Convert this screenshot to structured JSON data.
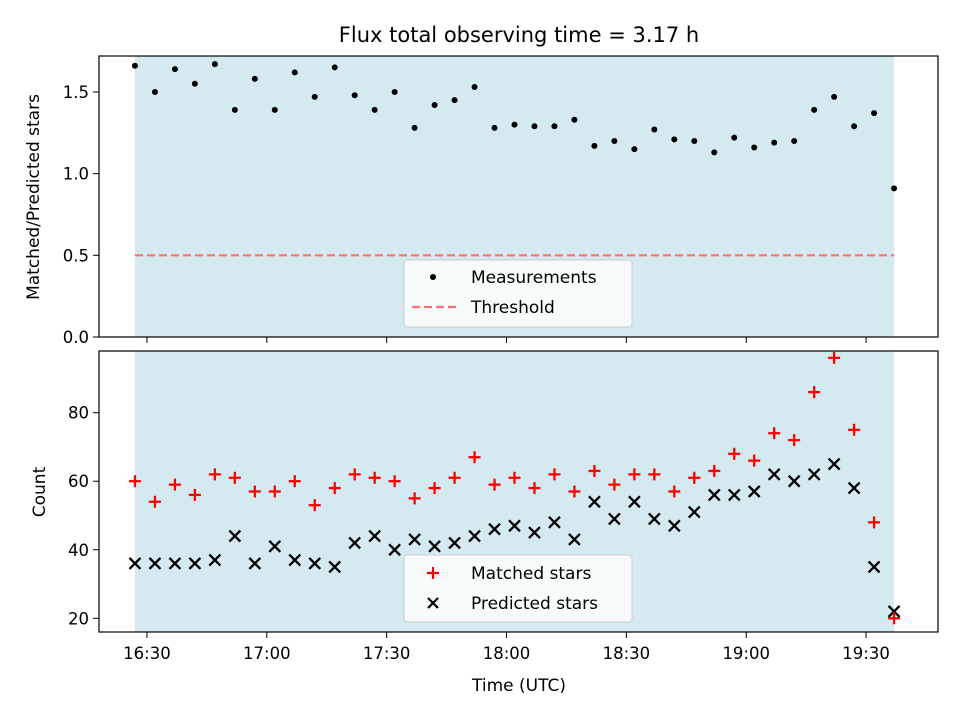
{
  "chart_data": [
    {
      "type": "scatter",
      "title": "Flux total observing time = 3.17 h",
      "xlabel": "",
      "ylabel": "Matched/Predicted stars",
      "ylim": [
        0,
        1.72
      ],
      "yticks": [
        "0.0",
        "0.5",
        "1.0",
        "1.5"
      ],
      "ytick_values": [
        0,
        0.5,
        1.0,
        1.5
      ],
      "threshold": 0.5,
      "shaded_region": [
        "16:27",
        "19:37"
      ],
      "shade_color": "#d4eaf0",
      "legend_position": "lower center",
      "legend": [
        "Measurements",
        "Threshold"
      ],
      "colors": {
        "measurements": "#000000",
        "threshold": "#ff7070"
      },
      "x": [
        "16:27",
        "16:32",
        "16:37",
        "16:42",
        "16:47",
        "16:52",
        "16:57",
        "17:02",
        "17:07",
        "17:12",
        "17:17",
        "17:22",
        "17:27",
        "17:32",
        "17:37",
        "17:42",
        "17:47",
        "17:52",
        "17:57",
        "18:02",
        "18:07",
        "18:12",
        "18:17",
        "18:22",
        "18:27",
        "18:32",
        "18:37",
        "18:42",
        "18:47",
        "18:52",
        "18:57",
        "19:02",
        "19:07",
        "19:12",
        "19:17",
        "19:22",
        "19:27",
        "19:32",
        "19:37"
      ],
      "series": [
        {
          "name": "Measurements",
          "values": [
            1.66,
            1.5,
            1.64,
            1.55,
            1.67,
            1.39,
            1.58,
            1.39,
            1.62,
            1.47,
            1.65,
            1.48,
            1.39,
            1.5,
            1.28,
            1.42,
            1.45,
            1.53,
            1.28,
            1.3,
            1.29,
            1.29,
            1.33,
            1.17,
            1.2,
            1.15,
            1.27,
            1.21,
            1.2,
            1.13,
            1.22,
            1.16,
            1.19,
            1.2,
            1.39,
            1.47,
            1.29,
            1.37,
            0.91
          ]
        }
      ]
    },
    {
      "type": "scatter",
      "title": "",
      "xlabel": "Time (UTC)",
      "ylabel": "Count",
      "ylim": [
        16,
        98
      ],
      "yticks": [
        "20",
        "40",
        "60",
        "80"
      ],
      "ytick_values": [
        20,
        40,
        60,
        80
      ],
      "xlim": [
        "16:18",
        "19:48"
      ],
      "xticks": [
        "16:30",
        "17:00",
        "17:30",
        "18:00",
        "18:30",
        "19:00",
        "19:30"
      ],
      "shaded_region": [
        "16:27",
        "19:37"
      ],
      "shade_color": "#d4eaf0",
      "legend_position": "lower center",
      "legend": [
        "Matched stars",
        "Predicted stars"
      ],
      "colors": {
        "matched": "#ff0000",
        "predicted": "#000000"
      },
      "x": [
        "16:27",
        "16:32",
        "16:37",
        "16:42",
        "16:47",
        "16:52",
        "16:57",
        "17:02",
        "17:07",
        "17:12",
        "17:17",
        "17:22",
        "17:27",
        "17:32",
        "17:37",
        "17:42",
        "17:47",
        "17:52",
        "17:57",
        "18:02",
        "18:07",
        "18:12",
        "18:17",
        "18:22",
        "18:27",
        "18:32",
        "18:37",
        "18:42",
        "18:47",
        "18:52",
        "18:57",
        "19:02",
        "19:07",
        "19:12",
        "19:17",
        "19:22",
        "19:27",
        "19:32",
        "19:37"
      ],
      "series": [
        {
          "name": "Matched stars",
          "values": [
            60,
            54,
            59,
            56,
            62,
            61,
            57,
            57,
            60,
            53,
            58,
            62,
            61,
            60,
            55,
            58,
            61,
            67,
            59,
            61,
            58,
            62,
            57,
            63,
            59,
            62,
            62,
            57,
            61,
            63,
            68,
            66,
            74,
            72,
            86,
            96,
            75,
            48,
            20
          ]
        },
        {
          "name": "Predicted stars",
          "values": [
            36,
            36,
            36,
            36,
            37,
            44,
            36,
            41,
            37,
            36,
            35,
            42,
            44,
            40,
            43,
            41,
            42,
            44,
            46,
            47,
            45,
            48,
            43,
            54,
            49,
            54,
            49,
            47,
            51,
            56,
            56,
            57,
            62,
            60,
            62,
            65,
            58,
            35,
            22
          ]
        }
      ]
    }
  ]
}
